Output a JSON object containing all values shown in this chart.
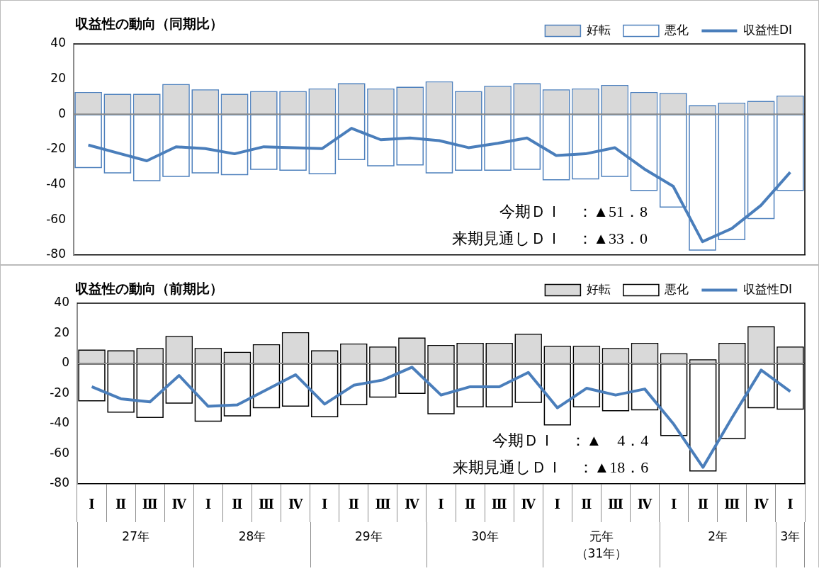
{
  "chart_data": [
    {
      "type": "bar",
      "title": "収益性の動向（同期比）",
      "stacked": true,
      "legend": "top right",
      "tick_labels": "y",
      "marker": "none",
      "categories": [
        null,
        null,
        null,
        null,
        null,
        null,
        null,
        null,
        null,
        null,
        null,
        null,
        null,
        null,
        null,
        null,
        null,
        null,
        null,
        null,
        null,
        null,
        null,
        null,
        null
      ],
      "ylim": [
        -80,
        40
      ],
      "yticks": [
        -80,
        -60,
        -40,
        -20,
        0,
        20,
        40
      ],
      "series": [
        {
          "name": "好転",
          "color": "#d9d9d9",
          "values": [
            12,
            11,
            11,
            16.5,
            13.5,
            11,
            12.5,
            12.5,
            14,
            17,
            14,
            15,
            18,
            12.5,
            15.5,
            17,
            13.5,
            14,
            16,
            12,
            11.5,
            4.5,
            6,
            7,
            10
          ]
        },
        {
          "name": "悪化",
          "color": "#4f81bd",
          "values": [
            -30,
            -33,
            -37.5,
            -35,
            -33,
            -34,
            -31,
            -31.5,
            -33.5,
            -25.5,
            -29,
            -28.5,
            -33,
            -31.5,
            -31.5,
            -31,
            -37,
            -36.5,
            -35,
            -43,
            -52.5,
            -77,
            -71,
            -59,
            -43
          ]
        },
        {
          "name": "収益性DI",
          "type": "line",
          "color": "#4a7ebb",
          "values": [
            -17.5,
            -22,
            -26.5,
            -18.5,
            -19.5,
            -22.5,
            -18.5,
            -19,
            -19.5,
            -8,
            -14.5,
            -13.5,
            -15,
            -19,
            -16.5,
            -13.5,
            -23.5,
            -22.5,
            -19,
            -31,
            -41,
            -72.5,
            -65,
            -51.8,
            -33
          ]
        }
      ],
      "annotations": [
        "今期ＤＩ　：▲51．8",
        "来期見通しＤＩ　：▲33．0"
      ]
    },
    {
      "type": "bar",
      "title": "収益性の動向（前期比）",
      "stacked": true,
      "legend": "top right",
      "marker": "none",
      "categories": [
        "Ⅰ",
        "Ⅱ",
        "Ⅲ",
        "Ⅳ",
        "Ⅰ",
        "Ⅱ",
        "Ⅲ",
        "Ⅳ",
        "Ⅰ",
        "Ⅱ",
        "Ⅲ",
        "Ⅳ",
        "Ⅰ",
        "Ⅱ",
        "Ⅲ",
        "Ⅳ",
        "Ⅰ",
        "Ⅱ",
        "Ⅲ",
        "Ⅳ",
        "Ⅰ",
        "Ⅱ",
        "Ⅲ",
        "Ⅳ",
        "Ⅰ"
      ],
      "ylim": [
        -80,
        40
      ],
      "yticks": [
        -80,
        -60,
        -40,
        -20,
        0,
        20,
        40
      ],
      "series": [
        {
          "name": "好転",
          "color": "#d9d9d9",
          "values": [
            8.5,
            8,
            9.5,
            17.5,
            9.5,
            7,
            12,
            20,
            8,
            12.5,
            10.5,
            16.5,
            11.5,
            13,
            13,
            19,
            11,
            11,
            9.5,
            13,
            6,
            2,
            13,
            24,
            10.5
          ]
        },
        {
          "name": "悪化",
          "color": "#000000",
          "values": [
            -24.5,
            -32,
            -35.5,
            -26,
            -38,
            -34.5,
            -29,
            -28,
            -35,
            -27,
            -22,
            -19.5,
            -33,
            -28.5,
            -28.5,
            -25.5,
            -40.5,
            -28.5,
            -31,
            -30.5,
            -47.5,
            -71,
            -49.5,
            -29,
            -30
          ]
        },
        {
          "name": "収益性DI",
          "type": "line",
          "color": "#4a7ebb",
          "values": [
            -15.5,
            -23.5,
            -25.5,
            -8,
            -28.5,
            -27.5,
            -17.5,
            -7.5,
            -27,
            -14.5,
            -11,
            -2.5,
            -21,
            -15.5,
            -15.5,
            -6,
            -29.5,
            -16.5,
            -21,
            -17,
            -40.5,
            -69,
            -36,
            -4.4,
            -18.6
          ]
        }
      ],
      "annotations": [
        "今期ＤＩ　：▲　4．4",
        "来期見通しＤＩ　：▲18．6",
        "27年",
        "28年",
        "29年",
        "30年",
        "元年（31年）",
        "2年",
        "3年"
      ]
    }
  ]
}
